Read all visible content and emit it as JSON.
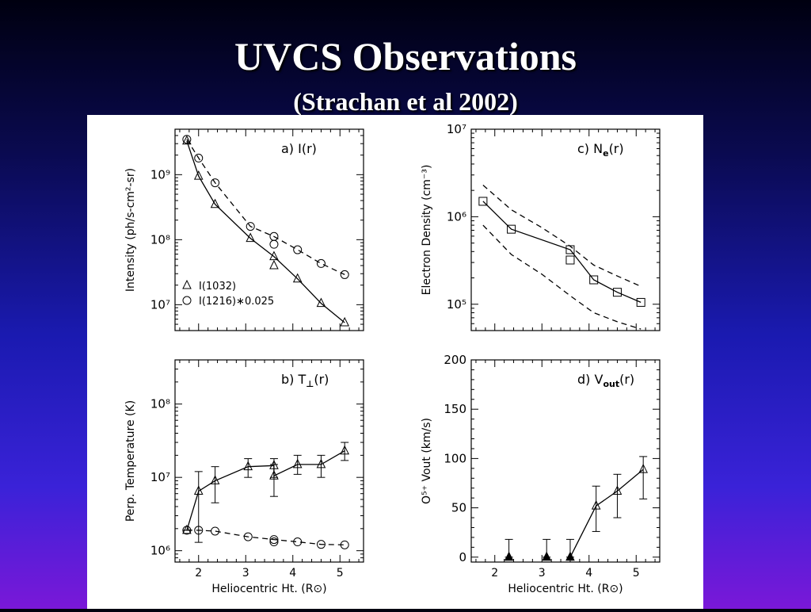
{
  "slide": {
    "title": "UVCS Observations",
    "subtitle": "(Strachan et al 2002)"
  },
  "chart_data": [
    {
      "panel": "a",
      "type": "line",
      "panel_label_prefix": "a) ",
      "panel_label_main": "I(r)",
      "ylabel": "Intensity (ph/s-cm²-sr)",
      "xlabel": "",
      "yscale": "log",
      "xlim": [
        1.5,
        5.5
      ],
      "ylim": [
        4000000.0,
        5000000000.0
      ],
      "xticks": [
        2,
        3,
        4,
        5
      ],
      "show_xticklabels": false,
      "yticks": [
        10000000.0,
        100000000.0,
        1000000000.0
      ],
      "yticklabels": [
        "10⁷",
        "10⁸",
        "10⁹"
      ],
      "legend": [
        {
          "marker": "triangle",
          "label": "I(1032)"
        },
        {
          "marker": "circle",
          "label": "I(1216)∗0.025"
        }
      ],
      "series": [
        {
          "name": "I(1032)",
          "marker": "triangle",
          "line": "solid",
          "x": [
            1.75,
            2.0,
            2.35,
            3.1,
            3.6,
            3.6,
            4.1,
            4.6,
            5.1
          ],
          "y": [
            3300000000.0,
            950000000.0,
            350000000.0,
            105000000.0,
            55000000.0,
            40000000.0,
            25000000.0,
            10500000.0,
            5300000.0
          ],
          "line_x": [
            1.75,
            2.0,
            2.35,
            3.1,
            3.6,
            4.1,
            4.6,
            5.1
          ],
          "line_y": [
            3300000000.0,
            950000000.0,
            350000000.0,
            105000000.0,
            55000000.0,
            25000000.0,
            10500000.0,
            5300000.0
          ]
        },
        {
          "name": "I(1216)∗0.025",
          "marker": "circle",
          "line": "dashed",
          "x": [
            1.75,
            2.0,
            2.35,
            3.1,
            3.6,
            3.6,
            4.1,
            4.6,
            5.1
          ],
          "y": [
            3500000000.0,
            1800000000.0,
            750000000.0,
            160000000.0,
            112000000.0,
            85000000.0,
            70000000.0,
            43000000.0,
            29000000.0
          ],
          "line_x": [
            1.75,
            2.0,
            2.35,
            3.1,
            3.6,
            4.1,
            4.6,
            5.1
          ],
          "line_y": [
            3500000000.0,
            1800000000.0,
            750000000.0,
            160000000.0,
            112000000.0,
            70000000.0,
            43000000.0,
            29000000.0
          ]
        }
      ]
    },
    {
      "panel": "c",
      "type": "line",
      "panel_label_prefix": "c) ",
      "panel_label_main": "N",
      "panel_label_sub": "e",
      "panel_label_suffix": "(r)",
      "ylabel": "Electron Density (cm⁻³)",
      "xlabel": "",
      "yscale": "log",
      "xlim": [
        1.5,
        5.5
      ],
      "ylim": [
        50000.0,
        10000000.0
      ],
      "xticks": [
        2,
        3,
        4,
        5
      ],
      "show_xticklabels": false,
      "yticks": [
        100000.0,
        1000000.0,
        10000000.0
      ],
      "yticklabels": [
        "10⁵",
        "10⁶",
        "10⁷"
      ],
      "series": [
        {
          "marker": "square",
          "line": "solid",
          "x": [
            1.75,
            2.35,
            3.6,
            3.6,
            4.1,
            4.6,
            5.1
          ],
          "y": [
            1500000.0,
            720000.0,
            420000.0,
            320000.0,
            190000.0,
            137000.0,
            105000.0
          ],
          "line_x": [
            1.75,
            2.35,
            3.6,
            4.1,
            4.6,
            5.1
          ],
          "line_y": [
            1500000.0,
            720000.0,
            420000.0,
            190000.0,
            137000.0,
            105000.0
          ]
        },
        {
          "marker": "none",
          "line": "dashed",
          "x": [
            1.75,
            2.35,
            3.0,
            3.6,
            4.1,
            4.6,
            5.1
          ],
          "y": [
            2300000.0,
            1200000.0,
            750000.0,
            460000.0,
            280000.0,
            210000.0,
            160000.0
          ]
        },
        {
          "marker": "none",
          "line": "dashed",
          "x": [
            1.75,
            2.35,
            3.0,
            3.6,
            4.1,
            4.6,
            5.1
          ],
          "y": [
            800000.0,
            370000.0,
            220000.0,
            125000.0,
            80000.0,
            63000.0,
            52000.0
          ]
        }
      ]
    },
    {
      "panel": "b",
      "type": "line",
      "panel_label_prefix": "b) ",
      "panel_label_main": "T",
      "panel_label_sub": "⊥",
      "panel_label_suffix": "(r)",
      "ylabel": "Perp. Temperature (K)",
      "xlabel": "Heliocentric Ht. (R⊙)",
      "yscale": "log",
      "xlim": [
        1.5,
        5.5
      ],
      "ylim": [
        700000.0,
        400000000.0
      ],
      "xticks": [
        2,
        3,
        4,
        5
      ],
      "xticklabels": [
        "2",
        "3",
        "4",
        "5"
      ],
      "show_xticklabels": true,
      "yticks": [
        1000000.0,
        10000000.0,
        100000000.0
      ],
      "yticklabels": [
        "10⁶",
        "10⁷",
        "10⁸"
      ],
      "series": [
        {
          "marker": "triangle",
          "line": "solid",
          "x": [
            1.75,
            2.0,
            2.35,
            3.05,
            3.6,
            3.6,
            4.1,
            4.6,
            5.1
          ],
          "y": [
            1900000.0,
            6500000.0,
            9000000.0,
            14000000.0,
            14500000.0,
            10500000.0,
            15000000.0,
            15000000.0,
            23000000.0
          ],
          "err_lo": [
            1900000.0,
            1300000.0,
            4500000.0,
            10000000.0,
            10000000.0,
            5500000.0,
            11000000.0,
            10000000.0,
            17000000.0
          ],
          "err_hi": [
            1900000.0,
            12000000.0,
            14000000.0,
            18000000.0,
            18000000.0,
            15000000.0,
            20000000.0,
            20000000.0,
            30000000.0
          ],
          "line_x": [
            1.75,
            2.0,
            2.35,
            3.05,
            3.6,
            3.6,
            4.1,
            4.6,
            5.1
          ],
          "line_y": [
            1900000.0,
            6500000.0,
            9000000.0,
            14000000.0,
            14500000.0,
            10500000.0,
            15000000.0,
            15000000.0,
            23000000.0
          ]
        },
        {
          "marker": "circle",
          "line": "dashed",
          "x": [
            1.75,
            2.0,
            2.35,
            3.05,
            3.6,
            3.6,
            4.1,
            4.6,
            5.1
          ],
          "y": [
            1900000.0,
            1900000.0,
            1850000.0,
            1550000.0,
            1420000.0,
            1320000.0,
            1320000.0,
            1220000.0,
            1200000.0
          ],
          "line_x": [
            1.75,
            2.0,
            2.35,
            3.05,
            3.6,
            4.1,
            4.6,
            5.1
          ],
          "line_y": [
            1900000.0,
            1900000.0,
            1850000.0,
            1550000.0,
            1420000.0,
            1320000.0,
            1220000.0,
            1200000.0
          ]
        }
      ]
    },
    {
      "panel": "d",
      "type": "line",
      "panel_label_prefix": "d) ",
      "panel_label_main": "V",
      "panel_label_sub": "out",
      "panel_label_suffix": "(r)",
      "ylabel": "O⁵⁺ Vout (km/s)",
      "xlabel": "Heliocentric Ht. (R⊙)",
      "yscale": "linear",
      "xlim": [
        1.5,
        5.5
      ],
      "ylim": [
        -5,
        200
      ],
      "xticks": [
        2,
        3,
        4,
        5
      ],
      "xticklabels": [
        "2",
        "3",
        "4",
        "5"
      ],
      "show_xticklabels": true,
      "yticks": [
        0,
        50,
        100,
        150,
        200
      ],
      "yticklabels": [
        "0",
        "50",
        "100",
        "150",
        "200"
      ],
      "series": [
        {
          "marker": "triangle",
          "line": "solid",
          "x": [
            2.3,
            3.1,
            3.6,
            4.15,
            4.6,
            5.15
          ],
          "y": [
            0,
            0,
            0,
            52,
            67,
            89
          ],
          "err_lo": [
            0,
            0,
            0,
            26,
            40,
            59
          ],
          "err_hi": [
            18,
            18,
            18,
            72,
            84,
            102
          ],
          "line_x": [
            3.6,
            4.15,
            4.6,
            5.15
          ],
          "line_y": [
            0,
            52,
            67,
            89
          ]
        }
      ]
    }
  ]
}
